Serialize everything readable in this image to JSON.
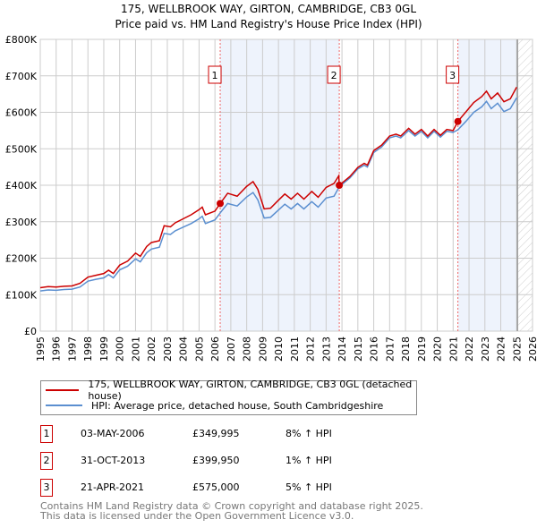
{
  "chart_data": {
    "type": "line",
    "title": "175, WELLBROOK WAY, GIRTON, CAMBRIDGE, CB3 0GL",
    "subtitle": "Price paid vs. HM Land Registry's House Price Index (HPI)",
    "xlim": [
      1995,
      2026
    ],
    "ylim": [
      0,
      800000
    ],
    "y_ticks": [
      {
        "v": 0,
        "label": "£0"
      },
      {
        "v": 100,
        "label": "£100K"
      },
      {
        "v": 200,
        "label": "£200K"
      },
      {
        "v": 300,
        "label": "£300K"
      },
      {
        "v": 400,
        "label": "£400K"
      },
      {
        "v": 500,
        "label": "£500K"
      },
      {
        "v": 600,
        "label": "£600K"
      },
      {
        "v": 700,
        "label": "£700K"
      },
      {
        "v": 800,
        "label": "£800K"
      }
    ],
    "x_ticks": [
      "1995",
      "1996",
      "1997",
      "1998",
      "1999",
      "2000",
      "2001",
      "2002",
      "2003",
      "2004",
      "2005",
      "2006",
      "2007",
      "2008",
      "2009",
      "2010",
      "2011",
      "2012",
      "2013",
      "2014",
      "2015",
      "2016",
      "2017",
      "2018",
      "2019",
      "2020",
      "2021",
      "2022",
      "2023",
      "2024",
      "2025",
      "2026"
    ],
    "shaded_ranges": [
      [
        2006.33,
        2013.83
      ],
      [
        2021.3,
        2025.0
      ]
    ],
    "forecast_from": 2025.05,
    "series": [
      {
        "name": "175, WELLBROOK WAY, GIRTON, CAMBRIDGE, CB3 0GL (detached house)",
        "color": "#cc0000",
        "unit": "£K",
        "points": [
          [
            1995,
            119
          ],
          [
            1995.5,
            122
          ],
          [
            1996,
            121
          ],
          [
            1996.5,
            123
          ],
          [
            1997,
            124
          ],
          [
            1997.5,
            131
          ],
          [
            1998,
            148
          ],
          [
            1998.5,
            153
          ],
          [
            1999,
            158
          ],
          [
            1999.3,
            167
          ],
          [
            1999.6,
            158
          ],
          [
            2000,
            181
          ],
          [
            2000.5,
            192
          ],
          [
            2001,
            214
          ],
          [
            2001.3,
            205
          ],
          [
            2001.7,
            232
          ],
          [
            2002,
            243
          ],
          [
            2002.5,
            248
          ],
          [
            2002.8,
            289
          ],
          [
            2003.2,
            286
          ],
          [
            2003.5,
            297
          ],
          [
            2004,
            308
          ],
          [
            2004.5,
            319
          ],
          [
            2005,
            333
          ],
          [
            2005.2,
            340
          ],
          [
            2005.4,
            319
          ],
          [
            2006,
            329
          ],
          [
            2006.33,
            350
          ],
          [
            2006.8,
            378
          ],
          [
            2007.4,
            370
          ],
          [
            2008,
            397
          ],
          [
            2008.4,
            410
          ],
          [
            2008.7,
            389
          ],
          [
            2009.1,
            335
          ],
          [
            2009.5,
            337
          ],
          [
            2010,
            359
          ],
          [
            2010.4,
            376
          ],
          [
            2010.8,
            362
          ],
          [
            2011.2,
            378
          ],
          [
            2011.6,
            362
          ],
          [
            2012.1,
            383
          ],
          [
            2012.5,
            367
          ],
          [
            2013,
            394
          ],
          [
            2013.5,
            405
          ],
          [
            2013.8,
            426
          ],
          [
            2013.83,
            400
          ],
          [
            2014.5,
            424
          ],
          [
            2015,
            449
          ],
          [
            2015.4,
            460
          ],
          [
            2015.6,
            455
          ],
          [
            2016,
            495
          ],
          [
            2016.5,
            510
          ],
          [
            2017,
            535
          ],
          [
            2017.4,
            540
          ],
          [
            2017.7,
            535
          ],
          [
            2018.2,
            556
          ],
          [
            2018.6,
            540
          ],
          [
            2019,
            553
          ],
          [
            2019.4,
            535
          ],
          [
            2019.8,
            553
          ],
          [
            2020.2,
            537
          ],
          [
            2020.6,
            553
          ],
          [
            2021,
            550
          ],
          [
            2021.3,
            575
          ],
          [
            2021.8,
            601
          ],
          [
            2022.3,
            627
          ],
          [
            2022.8,
            643
          ],
          [
            2023.1,
            658
          ],
          [
            2023.4,
            637
          ],
          [
            2023.8,
            653
          ],
          [
            2024.2,
            629
          ],
          [
            2024.6,
            637
          ],
          [
            2025,
            669
          ]
        ]
      },
      {
        "name": "HPI: Average price, detached house, South Cambridgeshire",
        "color": "#5b8fd0",
        "unit": "£K",
        "points": [
          [
            1995,
            110
          ],
          [
            1995.5,
            113
          ],
          [
            1996,
            112
          ],
          [
            1996.5,
            114
          ],
          [
            1997,
            115
          ],
          [
            1997.5,
            121
          ],
          [
            1998,
            137
          ],
          [
            1998.5,
            142
          ],
          [
            1999,
            146
          ],
          [
            1999.3,
            155
          ],
          [
            1999.6,
            146
          ],
          [
            2000,
            168
          ],
          [
            2000.5,
            178
          ],
          [
            2001,
            198
          ],
          [
            2001.3,
            190
          ],
          [
            2001.7,
            215
          ],
          [
            2002,
            225
          ],
          [
            2002.5,
            230
          ],
          [
            2002.8,
            268
          ],
          [
            2003.2,
            265
          ],
          [
            2003.5,
            275
          ],
          [
            2004,
            285
          ],
          [
            2004.5,
            295
          ],
          [
            2005,
            308
          ],
          [
            2005.2,
            315
          ],
          [
            2005.4,
            295
          ],
          [
            2006,
            305
          ],
          [
            2006.33,
            324
          ],
          [
            2006.8,
            350
          ],
          [
            2007.4,
            343
          ],
          [
            2008,
            368
          ],
          [
            2008.4,
            380
          ],
          [
            2008.7,
            360
          ],
          [
            2009.1,
            310
          ],
          [
            2009.5,
            312
          ],
          [
            2010,
            332
          ],
          [
            2010.4,
            348
          ],
          [
            2010.8,
            335
          ],
          [
            2011.2,
            350
          ],
          [
            2011.6,
            335
          ],
          [
            2012.1,
            355
          ],
          [
            2012.5,
            340
          ],
          [
            2013,
            365
          ],
          [
            2013.5,
            370
          ],
          [
            2013.83,
            396
          ],
          [
            2014.5,
            420
          ],
          [
            2015,
            445
          ],
          [
            2015.4,
            455
          ],
          [
            2015.6,
            450
          ],
          [
            2016,
            490
          ],
          [
            2016.5,
            505
          ],
          [
            2017,
            530
          ],
          [
            2017.4,
            535
          ],
          [
            2017.7,
            530
          ],
          [
            2018.2,
            550
          ],
          [
            2018.6,
            535
          ],
          [
            2019,
            548
          ],
          [
            2019.4,
            530
          ],
          [
            2019.8,
            548
          ],
          [
            2020.2,
            532
          ],
          [
            2020.6,
            548
          ],
          [
            2021,
            545
          ],
          [
            2021.3,
            552
          ],
          [
            2021.8,
            575
          ],
          [
            2022.3,
            600
          ],
          [
            2022.8,
            615
          ],
          [
            2023.1,
            630
          ],
          [
            2023.4,
            610
          ],
          [
            2023.8,
            625
          ],
          [
            2024.2,
            602
          ],
          [
            2024.6,
            610
          ],
          [
            2025,
            640
          ]
        ]
      }
    ],
    "sales": [
      {
        "id": "1",
        "x": 2006.33,
        "price_k": 350,
        "date": "03-MAY-2006",
        "price": "£349,995",
        "hpi": "8% ↑ HPI"
      },
      {
        "id": "2",
        "x": 2013.83,
        "price_k": 400,
        "date": "31-OCT-2013",
        "price": "£399,950",
        "hpi": "1% ↑ HPI"
      },
      {
        "id": "3",
        "x": 2021.3,
        "price_k": 575,
        "date": "21-APR-2021",
        "price": "£575,000",
        "hpi": "5% ↑ HPI"
      }
    ]
  },
  "legend": {
    "red": "175, WELLBROOK WAY, GIRTON, CAMBRIDGE, CB3 0GL (detached house)",
    "blue": "HPI: Average price, detached house, South Cambridgeshire"
  },
  "footer": {
    "line1": "Contains HM Land Registry data © Crown copyright and database right 2025.",
    "line2": "This data is licensed under the Open Government Licence v3.0."
  }
}
